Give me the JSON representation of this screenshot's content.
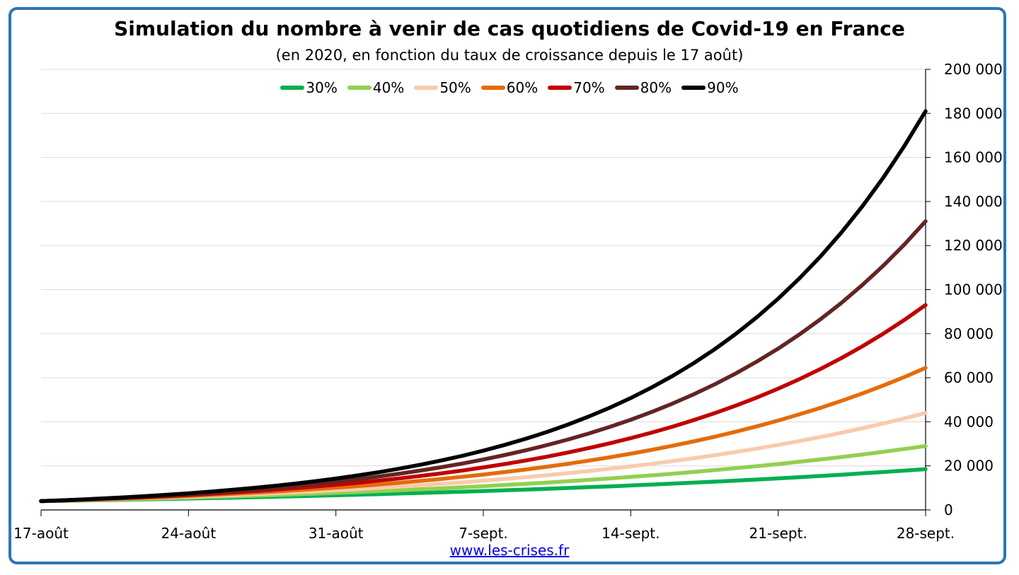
{
  "chart_data": {
    "type": "line",
    "title": "Simulation du nombre à venir de cas quotidiens de Covid-19 en France",
    "subtitle": "(en 2020, en fonction du taux de croissance depuis le 17 août)",
    "x_tick_labels": [
      "17-août",
      "24-août",
      "31-août",
      "7-sept.",
      "14-sept.",
      "21-sept.",
      "28-sept."
    ],
    "x_tick_days": [
      0,
      7,
      14,
      21,
      28,
      35,
      42
    ],
    "x_range_days": [
      0,
      42
    ],
    "y_tick_labels": [
      "0",
      "20 000",
      "40 000",
      "60 000",
      "80 000",
      "100 000",
      "120 000",
      "140 000",
      "160 000",
      "180 000",
      "200 000"
    ],
    "ylim": [
      0,
      200000
    ],
    "y_axis_side": "right",
    "grid": true,
    "legend_position": "top-center",
    "start_value": 4000,
    "series": [
      {
        "name": "30%",
        "color": "#00b050",
        "end_value": 18500
      },
      {
        "name": "40%",
        "color": "#92d050",
        "end_value": 29000
      },
      {
        "name": "50%",
        "color": "#f8cbad",
        "end_value": 44000
      },
      {
        "name": "60%",
        "color": "#e36c09",
        "end_value": 64500
      },
      {
        "name": "70%",
        "color": "#c00000",
        "end_value": 93000
      },
      {
        "name": "80%",
        "color": "#632523",
        "end_value": 131000
      },
      {
        "name": "90%",
        "color": "#000000",
        "end_value": 181000
      }
    ]
  },
  "source": "www.les-crises.fr"
}
